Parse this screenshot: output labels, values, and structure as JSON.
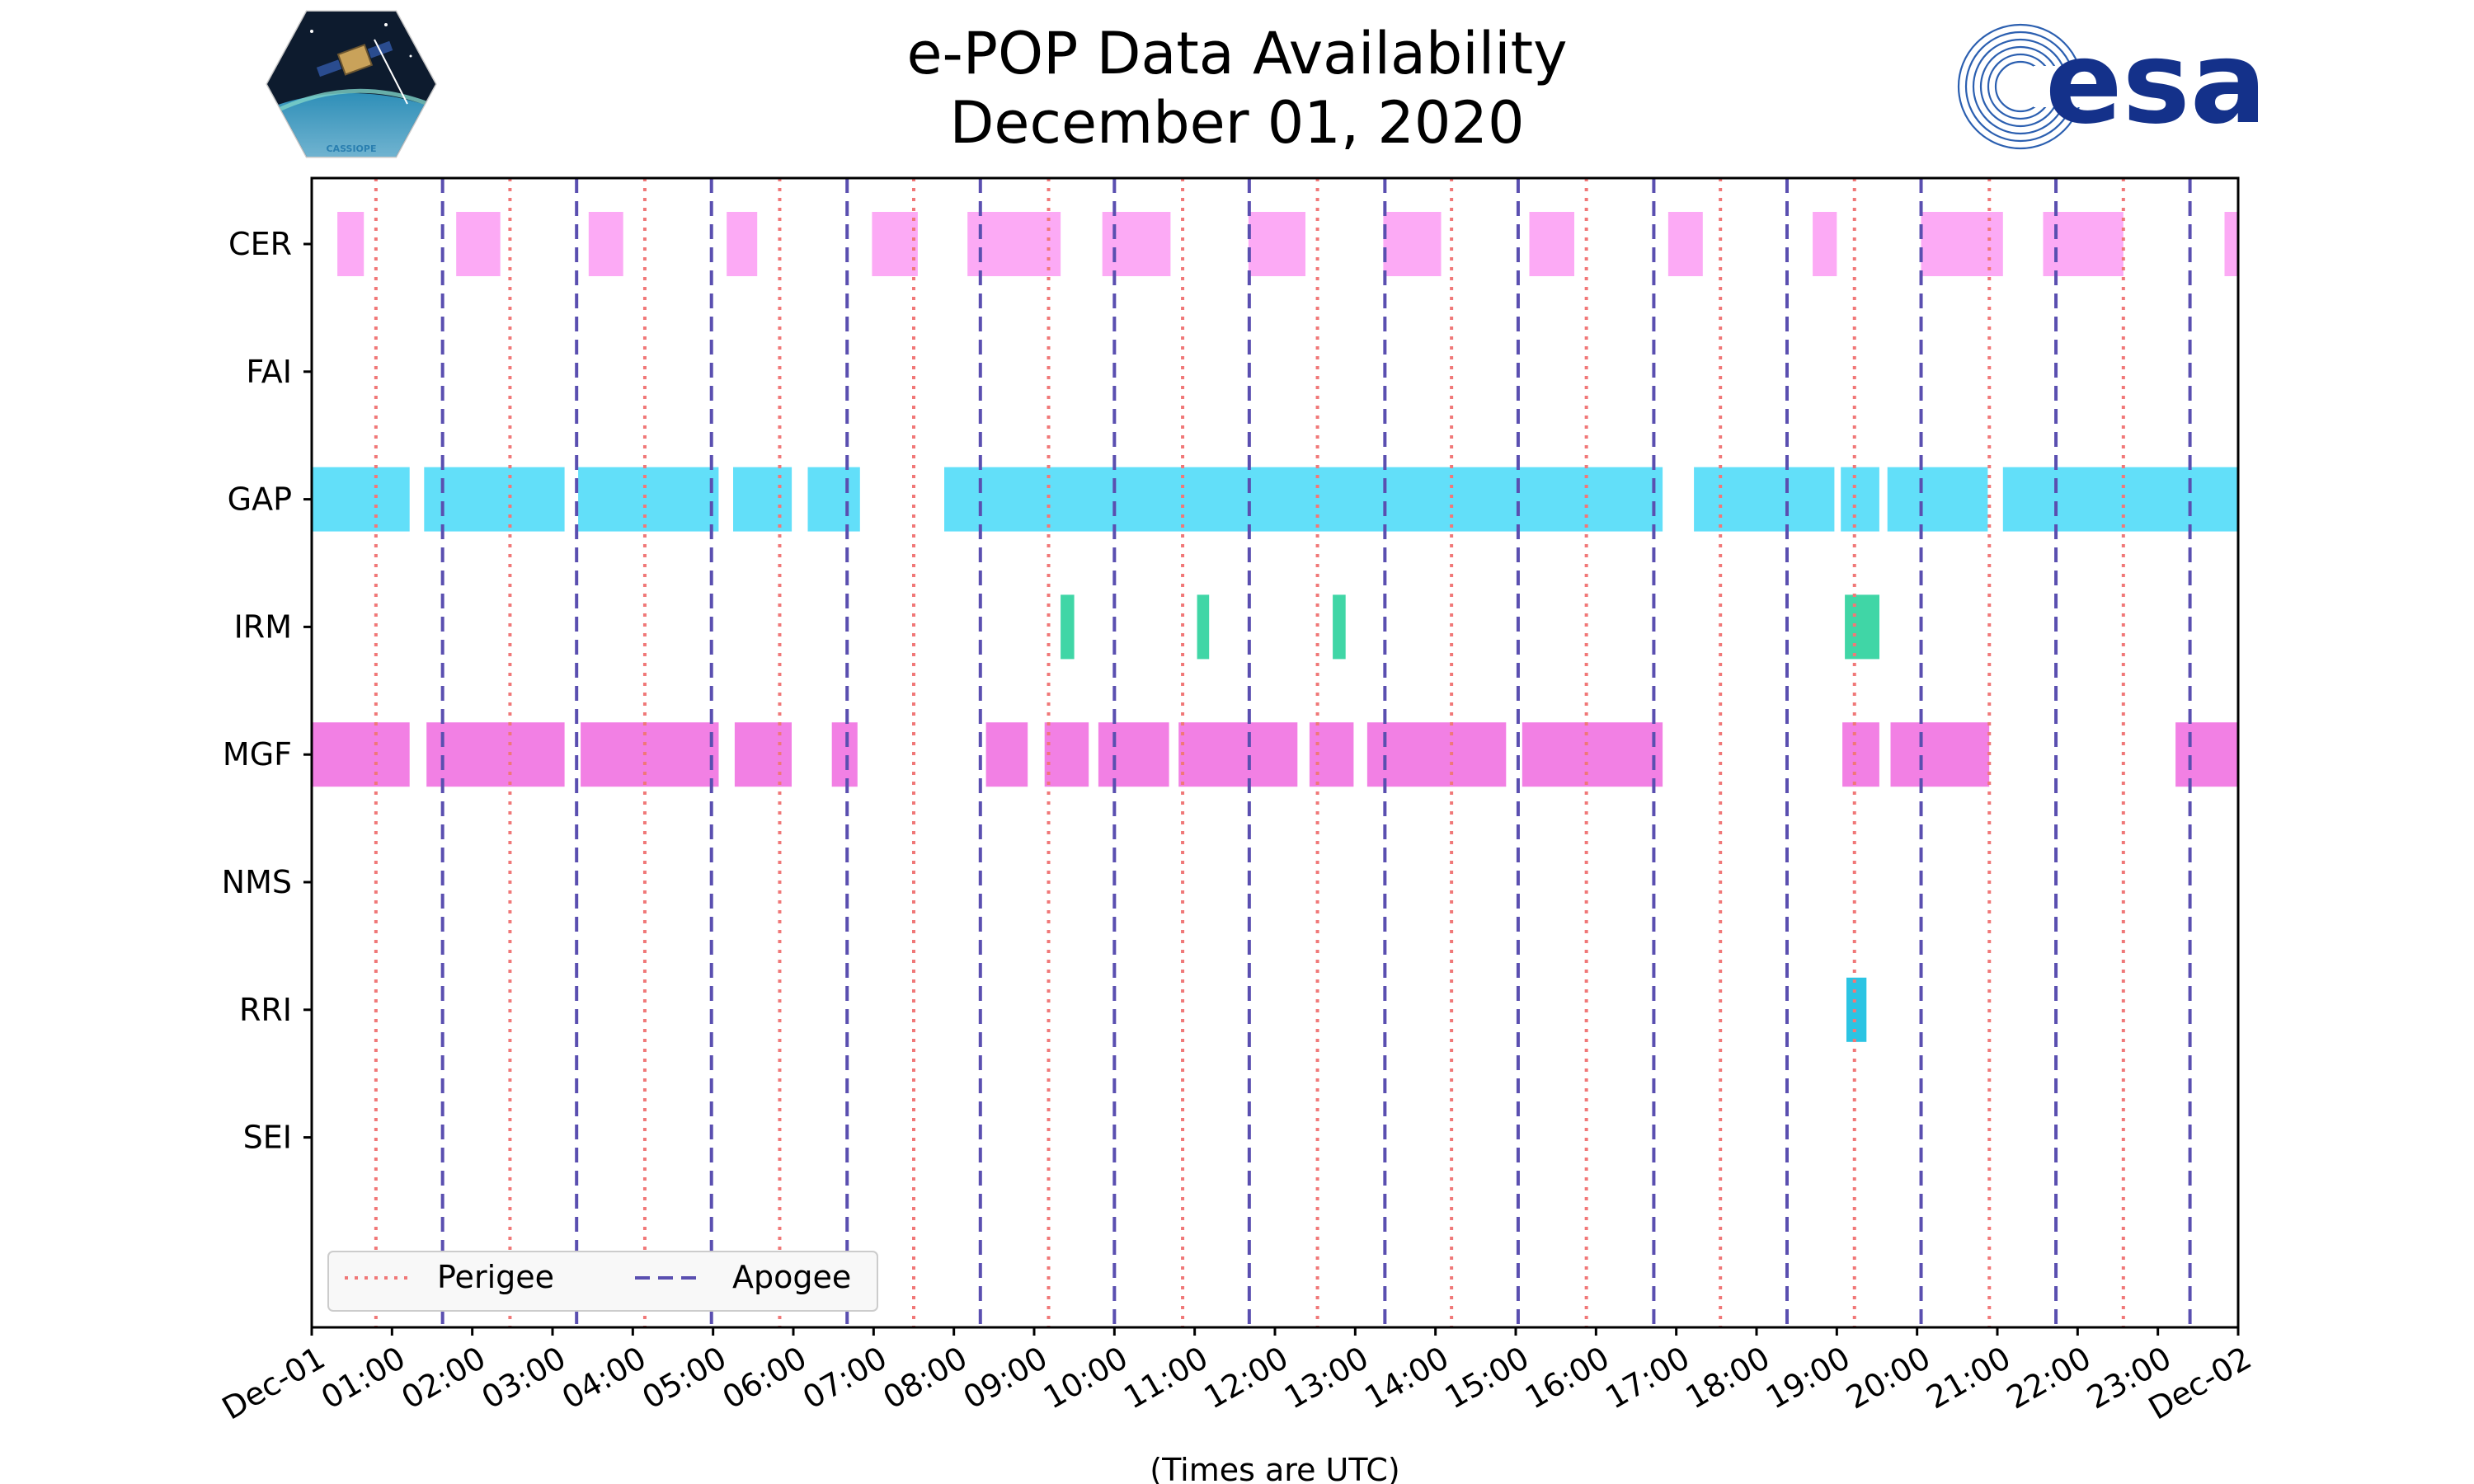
{
  "header": {
    "title_line1": "e-POP Data Availability",
    "title_line2": "December 01, 2020",
    "mission_logo_text": "CASSIOPE",
    "agency_logo_text": "esa"
  },
  "chart_data": {
    "type": "bar",
    "subtype": "timeline",
    "title": "e-POP Data Availability December 01, 2020",
    "xlabel": "(Times are UTC)",
    "ylabel": "",
    "xlim_hours": [
      0,
      24
    ],
    "x_tick_labels": [
      "Dec-01",
      "01:00",
      "02:00",
      "03:00",
      "04:00",
      "05:00",
      "06:00",
      "07:00",
      "08:00",
      "09:00",
      "10:00",
      "11:00",
      "12:00",
      "13:00",
      "14:00",
      "15:00",
      "16:00",
      "17:00",
      "18:00",
      "19:00",
      "20:00",
      "21:00",
      "22:00",
      "23:00",
      "Dec-02"
    ],
    "instruments": [
      "CER",
      "FAI",
      "GAP",
      "IRM",
      "MGF",
      "NMS",
      "RRI",
      "SEI"
    ],
    "grid": false,
    "legend": {
      "position": "bottom-left",
      "entries": [
        {
          "label": "Perigee",
          "color": "#f07878",
          "style": "dotted"
        },
        {
          "label": "Apogee",
          "color": "#5a4fb0",
          "style": "dashed"
        }
      ]
    },
    "perigee_hours": [
      0.8,
      2.47,
      4.15,
      5.83,
      7.5,
      9.18,
      10.85,
      12.53,
      14.2,
      15.88,
      17.55,
      19.22,
      20.9,
      22.57
    ],
    "apogee_hours": [
      1.63,
      3.3,
      4.98,
      6.67,
      8.33,
      10.0,
      11.68,
      13.37,
      15.03,
      16.72,
      18.38,
      20.05,
      21.73,
      23.4
    ],
    "series": [
      {
        "name": "CER",
        "color": "#fcaaf5",
        "intervals": [
          [
            0.32,
            0.65
          ],
          [
            1.8,
            2.35
          ],
          [
            3.45,
            3.88
          ],
          [
            5.17,
            5.55
          ],
          [
            6.98,
            7.55
          ],
          [
            8.17,
            9.33
          ],
          [
            9.85,
            10.7
          ],
          [
            11.67,
            12.38
          ],
          [
            13.35,
            14.07
          ],
          [
            15.17,
            15.73
          ],
          [
            16.9,
            17.33
          ],
          [
            18.7,
            19.0
          ],
          [
            20.05,
            21.07
          ],
          [
            21.57,
            22.57
          ],
          [
            23.83,
            24.0
          ]
        ]
      },
      {
        "name": "FAI",
        "color": "#cccccc",
        "intervals": []
      },
      {
        "name": "GAP",
        "color": "#62dff9",
        "intervals": [
          [
            0.0,
            1.22
          ],
          [
            1.4,
            3.15
          ],
          [
            3.32,
            5.07
          ],
          [
            5.25,
            5.98
          ],
          [
            6.18,
            6.83
          ],
          [
            7.88,
            16.83
          ],
          [
            17.22,
            18.97
          ],
          [
            19.05,
            19.53
          ],
          [
            19.63,
            20.88
          ],
          [
            21.07,
            24.0
          ]
        ]
      },
      {
        "name": "IRM",
        "color": "#40d6a6",
        "intervals": [
          [
            9.33,
            9.5
          ],
          [
            11.03,
            11.18
          ],
          [
            12.72,
            12.88
          ],
          [
            19.1,
            19.53
          ]
        ]
      },
      {
        "name": "MGF",
        "color": "#f280e4",
        "intervals": [
          [
            0.0,
            1.22
          ],
          [
            1.43,
            3.15
          ],
          [
            3.35,
            5.07
          ],
          [
            5.27,
            5.98
          ],
          [
            6.48,
            6.8
          ],
          [
            8.4,
            8.92
          ],
          [
            9.13,
            9.68
          ],
          [
            9.8,
            10.68
          ],
          [
            10.8,
            12.28
          ],
          [
            12.43,
            12.98
          ],
          [
            13.15,
            14.88
          ],
          [
            15.08,
            16.83
          ],
          [
            19.07,
            19.53
          ],
          [
            19.67,
            20.9
          ],
          [
            23.22,
            24.0
          ]
        ]
      },
      {
        "name": "NMS",
        "color": "#cccccc",
        "intervals": []
      },
      {
        "name": "RRI",
        "color": "#2bc4e3",
        "intervals": [
          [
            19.12,
            19.37
          ]
        ]
      },
      {
        "name": "SEI",
        "color": "#cccccc",
        "intervals": []
      }
    ]
  }
}
